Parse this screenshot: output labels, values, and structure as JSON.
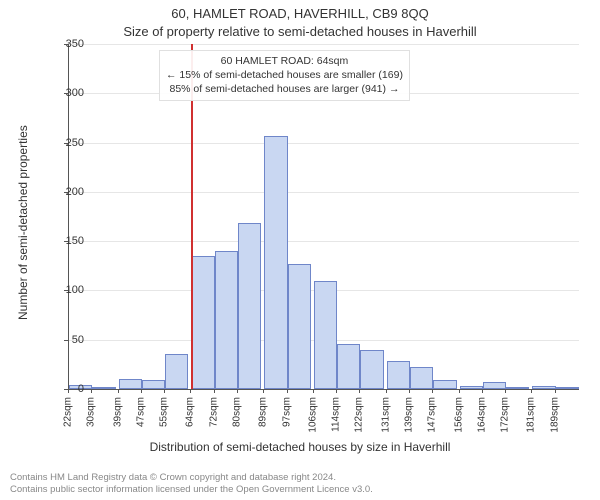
{
  "titles": {
    "main": "60, HAMLET ROAD, HAVERHILL, CB9 8QQ",
    "sub": "Size of property relative to semi-detached houses in Haverhill"
  },
  "axes": {
    "ylabel": "Number of semi-detached properties",
    "xlabel": "Distribution of semi-detached houses by size in Haverhill",
    "ylim": [
      0,
      350
    ],
    "ytick_step": 50,
    "label_fontsize": 12,
    "tick_fontsize": 11,
    "axis_color": "#555555",
    "grid_color": "#e6e6e6",
    "text_color": "#333333"
  },
  "annotation": {
    "line1": "60 HAMLET ROAD: 64sqm",
    "line2": "← 15% of semi-detached houses are smaller (169)",
    "line3": "85% of semi-detached houses are larger (941) →",
    "fontsize": 10.5,
    "border_color": "#e0e0e0",
    "background": "#ffffff"
  },
  "marker": {
    "value": 64,
    "color": "#d03030",
    "width": 2
  },
  "histogram": {
    "type": "histogram",
    "bar_fill": "#c9d7f2",
    "bar_stroke": "#6f86c9",
    "bar_stroke_width": 1,
    "background_color": "#ffffff",
    "bins": [
      {
        "x": 22,
        "label": "22sqm",
        "count": 4
      },
      {
        "x": 30,
        "label": "30sqm",
        "count": 2
      },
      {
        "x": 39,
        "label": "39sqm",
        "count": 10
      },
      {
        "x": 47,
        "label": "47sqm",
        "count": 9
      },
      {
        "x": 55,
        "label": "55sqm",
        "count": 36
      },
      {
        "x": 64,
        "label": "64sqm",
        "count": 135
      },
      {
        "x": 72,
        "label": "72sqm",
        "count": 140
      },
      {
        "x": 80,
        "label": "80sqm",
        "count": 168
      },
      {
        "x": 89,
        "label": "89sqm",
        "count": 257
      },
      {
        "x": 97,
        "label": "97sqm",
        "count": 127
      },
      {
        "x": 106,
        "label": "106sqm",
        "count": 110
      },
      {
        "x": 114,
        "label": "114sqm",
        "count": 46
      },
      {
        "x": 122,
        "label": "122sqm",
        "count": 40
      },
      {
        "x": 131,
        "label": "131sqm",
        "count": 28
      },
      {
        "x": 139,
        "label": "139sqm",
        "count": 22
      },
      {
        "x": 147,
        "label": "147sqm",
        "count": 9
      },
      {
        "x": 156,
        "label": "156sqm",
        "count": 3
      },
      {
        "x": 164,
        "label": "164sqm",
        "count": 7
      },
      {
        "x": 172,
        "label": "172sqm",
        "count": 2
      },
      {
        "x": 181,
        "label": "181sqm",
        "count": 3
      },
      {
        "x": 189,
        "label": "189sqm",
        "count": 2
      }
    ]
  },
  "footer": {
    "line1": "Contains HM Land Registry data © Crown copyright and database right 2024.",
    "line2": "Contains public sector information licensed under the Open Government Licence v3.0.",
    "color": "#888888",
    "fontsize": 9.5
  }
}
